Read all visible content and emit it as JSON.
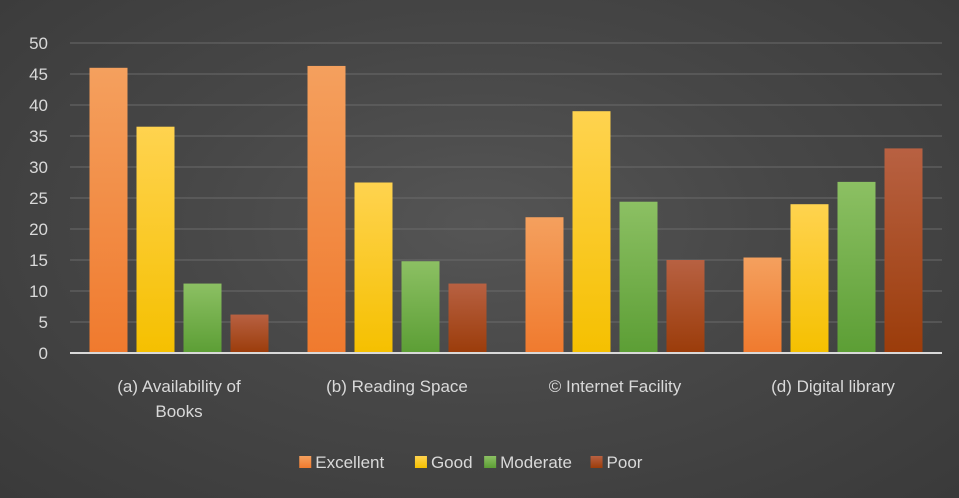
{
  "chart_data": {
    "type": "bar",
    "categories": [
      "(a) Availability of Books",
      "(b) Reading Space",
      "© Internet Facility",
      "(d) Digital library"
    ],
    "category_lines": [
      [
        "(a) Availability of",
        "Books"
      ],
      [
        "(b) Reading Space"
      ],
      [
        "© Internet Facility"
      ],
      [
        "(d) Digital library"
      ]
    ],
    "series": [
      {
        "name": "Excellent",
        "values": [
          46,
          46.3,
          21.9,
          15.4
        ],
        "color": "#f07a2e",
        "color_light": "#f4a05e"
      },
      {
        "name": "Good",
        "values": [
          36.5,
          27.5,
          39,
          24
        ],
        "color": "#f5c000",
        "color_light": "#ffd34f"
      },
      {
        "name": "Moderate",
        "values": [
          11.2,
          14.8,
          24.4,
          27.6
        ],
        "color": "#5c9e35",
        "color_light": "#8cc063"
      },
      {
        "name": "Poor",
        "values": [
          6.2,
          11.2,
          15,
          33
        ],
        "color": "#9b3c0a",
        "color_light": "#b86142"
      }
    ],
    "y_ticks": [
      0,
      5,
      10,
      15,
      20,
      25,
      30,
      35,
      40,
      45,
      50
    ],
    "ylim": [
      0,
      50
    ],
    "grid": true,
    "legend_position": "bottom",
    "title": "",
    "xlabel": "",
    "ylabel": ""
  }
}
